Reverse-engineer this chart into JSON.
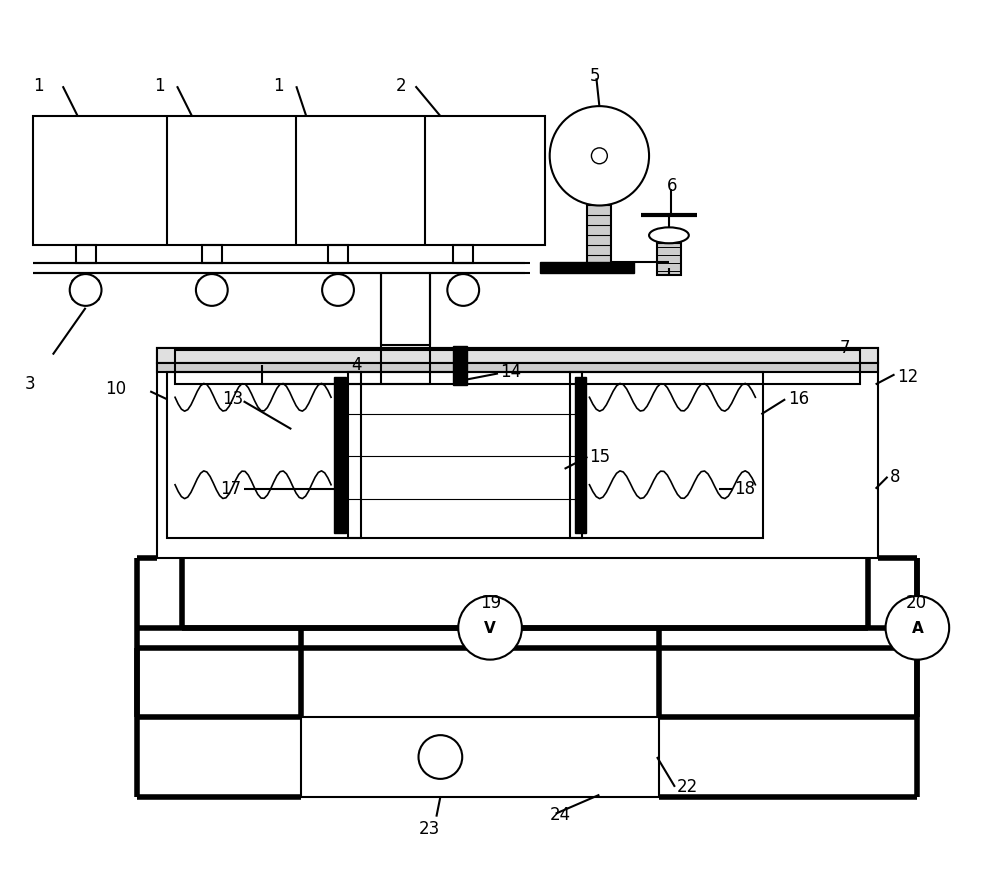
{
  "bg": "#ffffff",
  "lc": "#000000",
  "lw": 1.5,
  "tlw": 4.0,
  "fw": 10.0,
  "fh": 8.87
}
